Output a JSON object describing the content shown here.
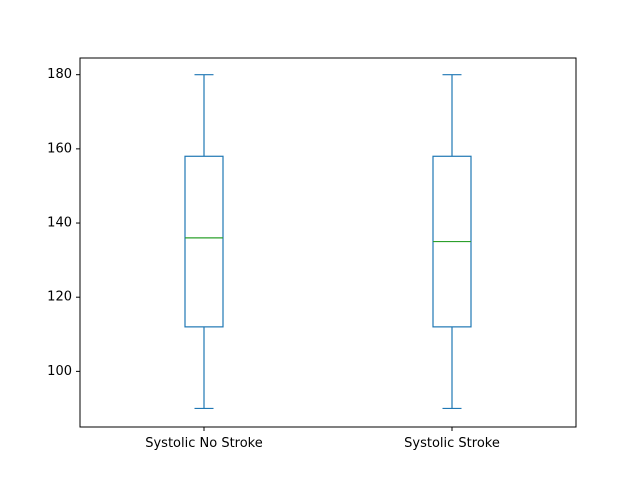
{
  "chart_data": {
    "type": "box",
    "title": "",
    "xlabel": "",
    "ylabel": "",
    "categories": [
      "Systolic No Stroke",
      "Systolic Stroke"
    ],
    "boxes": [
      {
        "category": "Systolic No Stroke",
        "whisker_low": 90,
        "q1": 112,
        "median": 136,
        "q3": 158,
        "whisker_high": 180
      },
      {
        "category": "Systolic Stroke",
        "whisker_low": 90,
        "q1": 112,
        "median": 135,
        "q3": 158,
        "whisker_high": 180
      }
    ],
    "ylim": [
      85,
      184.5
    ],
    "yticks": [
      100,
      120,
      140,
      160,
      180
    ],
    "grid": false,
    "colors": {
      "box": "#1f77b4",
      "median": "#2ca02c",
      "axis": "#000000"
    }
  }
}
